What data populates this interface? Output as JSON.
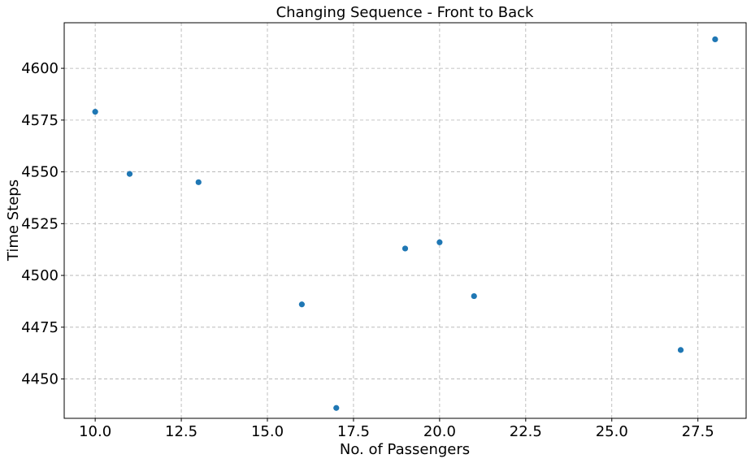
{
  "chart_data": {
    "type": "scatter",
    "title": "Changing Sequence -  Front to Back",
    "xlabel": "No. of Passengers",
    "ylabel": "Time Steps",
    "xlim": [
      9.1,
      28.9
    ],
    "ylim": [
      4431,
      4622
    ],
    "x_ticks": [
      10.0,
      12.5,
      15.0,
      17.5,
      20.0,
      22.5,
      25.0,
      27.5
    ],
    "x_tick_labels": [
      "10.0",
      "12.5",
      "15.0",
      "17.5",
      "20.0",
      "22.5",
      "25.0",
      "27.5"
    ],
    "y_ticks": [
      4450,
      4475,
      4500,
      4525,
      4550,
      4575,
      4600
    ],
    "y_tick_labels": [
      "4450",
      "4475",
      "4500",
      "4525",
      "4550",
      "4575",
      "4600"
    ],
    "grid": true,
    "series": [
      {
        "name": "Front to Back",
        "color": "#1f77b4",
        "points": [
          {
            "x": 10,
            "y": 4579
          },
          {
            "x": 11,
            "y": 4549
          },
          {
            "x": 13,
            "y": 4545
          },
          {
            "x": 16,
            "y": 4486
          },
          {
            "x": 17,
            "y": 4436
          },
          {
            "x": 19,
            "y": 4513
          },
          {
            "x": 20,
            "y": 4516
          },
          {
            "x": 21,
            "y": 4490
          },
          {
            "x": 27,
            "y": 4464
          },
          {
            "x": 28,
            "y": 4614
          }
        ]
      }
    ]
  }
}
